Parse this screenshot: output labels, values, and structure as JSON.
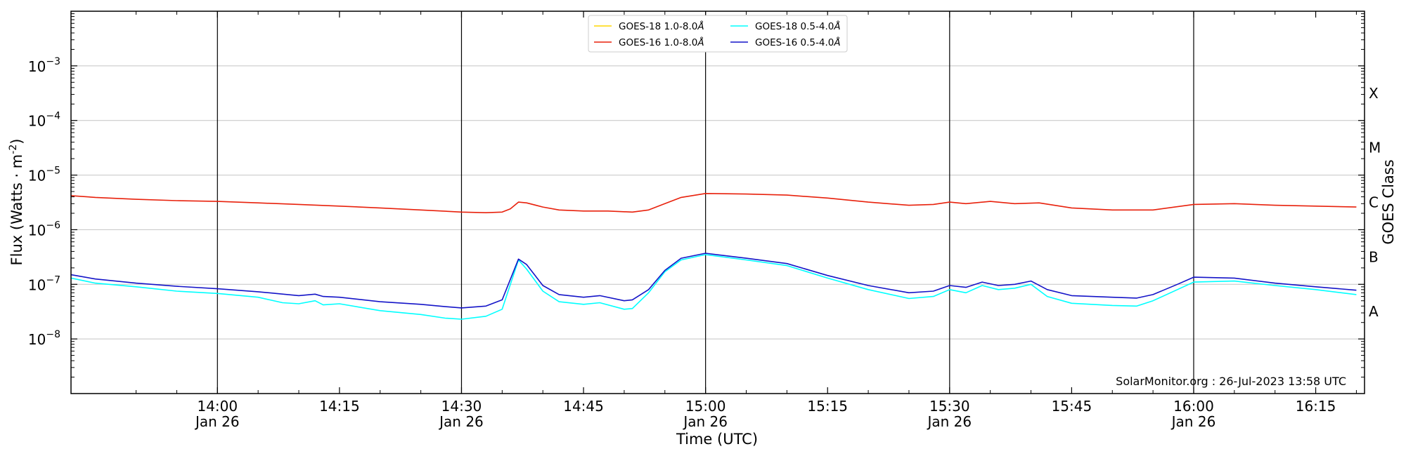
{
  "chart_data": {
    "type": "line",
    "xlabel": "Time (UTC)",
    "ylabel": "Flux (Watts · m",
    "ylabel_sup": "-2",
    "ylabel_close": ")",
    "y_scale": "log",
    "xlim": [
      "13:42",
      "16:21"
    ],
    "ylim": [
      1e-09,
      0.01
    ],
    "grid": "horizontal",
    "legend_position": "top-center",
    "x_ticks": [
      {
        "time": "14:00",
        "label": "14:00",
        "sub": "Jan 26"
      },
      {
        "time": "14:15",
        "label": "14:15",
        "sub": ""
      },
      {
        "time": "14:30",
        "label": "14:30",
        "sub": "Jan 26"
      },
      {
        "time": "14:45",
        "label": "14:45",
        "sub": ""
      },
      {
        "time": "15:00",
        "label": "15:00",
        "sub": "Jan 26"
      },
      {
        "time": "15:15",
        "label": "15:15",
        "sub": ""
      },
      {
        "time": "15:30",
        "label": "15:30",
        "sub": "Jan 26"
      },
      {
        "time": "15:45",
        "label": "15:45",
        "sub": ""
      },
      {
        "time": "16:00",
        "label": "16:00",
        "sub": "Jan 26"
      },
      {
        "time": "16:15",
        "label": "16:15",
        "sub": ""
      }
    ],
    "day_lines": [
      "14:00",
      "14:30",
      "15:00",
      "15:30",
      "16:00"
    ],
    "y_ticks": [
      {
        "value": 1e-08,
        "base": "10",
        "exp": "−8"
      },
      {
        "value": 1e-07,
        "base": "10",
        "exp": "−7"
      },
      {
        "value": 1e-06,
        "base": "10",
        "exp": "−6"
      },
      {
        "value": 1e-05,
        "base": "10",
        "exp": "−5"
      },
      {
        "value": 0.0001,
        "base": "10",
        "exp": "−4"
      },
      {
        "value": 0.001,
        "base": "10",
        "exp": "−3"
      }
    ],
    "right_axis": {
      "label": "GOES Class",
      "classes": [
        {
          "label": "A",
          "value": 3.16e-08
        },
        {
          "label": "B",
          "value": 3.16e-07
        },
        {
          "label": "C",
          "value": 3.16e-06
        },
        {
          "label": "M",
          "value": 3.16e-05
        },
        {
          "label": "X",
          "value": 0.000316
        }
      ]
    },
    "credit": "SolarMonitor.org : 26-Jul-2023 13:58 UTC",
    "legend": [
      {
        "label": "GOES-18 1.0-8.0",
        "unit": "Å",
        "color": "#FFD700"
      },
      {
        "label": "GOES-16 1.0-8.0",
        "unit": "Å",
        "color": "#E8210C"
      },
      {
        "label": "GOES-18 0.5-4.0",
        "unit": "Å",
        "color": "#00FFFF"
      },
      {
        "label": "GOES-16 0.5-4.0",
        "unit": "Å",
        "color": "#1414C8"
      }
    ],
    "series": [
      {
        "name": "GOES-16 1.0-8.0Å",
        "color": "#E8210C",
        "points": [
          [
            "13:42",
            4.2e-06
          ],
          [
            "13:45",
            3.9e-06
          ],
          [
            "13:50",
            3.6e-06
          ],
          [
            "13:55",
            3.4e-06
          ],
          [
            "14:00",
            3.3e-06
          ],
          [
            "14:05",
            3.1e-06
          ],
          [
            "14:10",
            2.9e-06
          ],
          [
            "14:15",
            2.7e-06
          ],
          [
            "14:20",
            2.5e-06
          ],
          [
            "14:25",
            2.3e-06
          ],
          [
            "14:30",
            2.1e-06
          ],
          [
            "14:33",
            2.05e-06
          ],
          [
            "14:35",
            2.1e-06
          ],
          [
            "14:36",
            2.4e-06
          ],
          [
            "14:37",
            3.2e-06
          ],
          [
            "14:38",
            3.1e-06
          ],
          [
            "14:40",
            2.6e-06
          ],
          [
            "14:42",
            2.3e-06
          ],
          [
            "14:45",
            2.2e-06
          ],
          [
            "14:48",
            2.2e-06
          ],
          [
            "14:51",
            2.1e-06
          ],
          [
            "14:53",
            2.3e-06
          ],
          [
            "14:55",
            3e-06
          ],
          [
            "14:57",
            3.9e-06
          ],
          [
            "15:00",
            4.6e-06
          ],
          [
            "15:05",
            4.5e-06
          ],
          [
            "15:10",
            4.3e-06
          ],
          [
            "15:15",
            3.8e-06
          ],
          [
            "15:20",
            3.2e-06
          ],
          [
            "15:25",
            2.8e-06
          ],
          [
            "15:28",
            2.9e-06
          ],
          [
            "15:30",
            3.2e-06
          ],
          [
            "15:32",
            3e-06
          ],
          [
            "15:35",
            3.3e-06
          ],
          [
            "15:38",
            3e-06
          ],
          [
            "15:41",
            3.1e-06
          ],
          [
            "15:45",
            2.5e-06
          ],
          [
            "15:50",
            2.3e-06
          ],
          [
            "15:55",
            2.3e-06
          ],
          [
            "16:00",
            2.9e-06
          ],
          [
            "16:05",
            3e-06
          ],
          [
            "16:10",
            2.8e-06
          ],
          [
            "16:15",
            2.7e-06
          ],
          [
            "16:20",
            2.6e-06
          ]
        ]
      },
      {
        "name": "GOES-18 0.5-4.0Å",
        "color": "#00FFFF",
        "points": [
          [
            "13:42",
            1.3e-07
          ],
          [
            "13:45",
            1.05e-07
          ],
          [
            "13:50",
            9e-08
          ],
          [
            "13:55",
            7.5e-08
          ],
          [
            "14:00",
            6.8e-08
          ],
          [
            "14:05",
            5.8e-08
          ],
          [
            "14:08",
            4.6e-08
          ],
          [
            "14:10",
            4.4e-08
          ],
          [
            "14:12",
            5e-08
          ],
          [
            "14:13",
            4.2e-08
          ],
          [
            "14:15",
            4.4e-08
          ],
          [
            "14:20",
            3.3e-08
          ],
          [
            "14:25",
            2.8e-08
          ],
          [
            "14:28",
            2.4e-08
          ],
          [
            "14:30",
            2.3e-08
          ],
          [
            "14:33",
            2.6e-08
          ],
          [
            "14:35",
            3.5e-08
          ],
          [
            "14:37",
            2.8e-07
          ],
          [
            "14:38",
            1.9e-07
          ],
          [
            "14:40",
            7.5e-08
          ],
          [
            "14:42",
            4.8e-08
          ],
          [
            "14:45",
            4.3e-08
          ],
          [
            "14:47",
            4.6e-08
          ],
          [
            "14:50",
            3.5e-08
          ],
          [
            "14:51",
            3.6e-08
          ],
          [
            "14:53",
            7e-08
          ],
          [
            "14:55",
            1.7e-07
          ],
          [
            "14:57",
            2.8e-07
          ],
          [
            "15:00",
            3.5e-07
          ],
          [
            "15:05",
            2.8e-07
          ],
          [
            "15:10",
            2.2e-07
          ],
          [
            "15:15",
            1.3e-07
          ],
          [
            "15:20",
            8e-08
          ],
          [
            "15:25",
            5.5e-08
          ],
          [
            "15:28",
            6e-08
          ],
          [
            "15:30",
            8e-08
          ],
          [
            "15:32",
            7e-08
          ],
          [
            "15:34",
            9.5e-08
          ],
          [
            "15:36",
            8e-08
          ],
          [
            "15:38",
            8.5e-08
          ],
          [
            "15:40",
            1e-07
          ],
          [
            "15:42",
            6e-08
          ],
          [
            "15:45",
            4.5e-08
          ],
          [
            "15:50",
            4.1e-08
          ],
          [
            "15:53",
            4e-08
          ],
          [
            "15:55",
            5e-08
          ],
          [
            "15:58",
            8e-08
          ],
          [
            "16:00",
            1.1e-07
          ],
          [
            "16:05",
            1.15e-07
          ],
          [
            "16:10",
            9.5e-08
          ],
          [
            "16:15",
            8e-08
          ],
          [
            "16:20",
            6.5e-08
          ]
        ]
      },
      {
        "name": "GOES-16 0.5-4.0Å",
        "color": "#1414C8",
        "points": [
          [
            "13:42",
            1.5e-07
          ],
          [
            "13:45",
            1.25e-07
          ],
          [
            "13:50",
            1.05e-07
          ],
          [
            "13:55",
            9.2e-08
          ],
          [
            "14:00",
            8.3e-08
          ],
          [
            "14:05",
            7.3e-08
          ],
          [
            "14:10",
            6.2e-08
          ],
          [
            "14:12",
            6.6e-08
          ],
          [
            "14:13",
            6e-08
          ],
          [
            "14:15",
            5.8e-08
          ],
          [
            "14:20",
            4.8e-08
          ],
          [
            "14:25",
            4.3e-08
          ],
          [
            "14:28",
            3.9e-08
          ],
          [
            "14:30",
            3.7e-08
          ],
          [
            "14:33",
            4e-08
          ],
          [
            "14:35",
            5.2e-08
          ],
          [
            "14:37",
            2.9e-07
          ],
          [
            "14:38",
            2.3e-07
          ],
          [
            "14:40",
            9.5e-08
          ],
          [
            "14:42",
            6.5e-08
          ],
          [
            "14:45",
            5.8e-08
          ],
          [
            "14:47",
            6.2e-08
          ],
          [
            "14:50",
            5e-08
          ],
          [
            "14:51",
            5.2e-08
          ],
          [
            "14:53",
            8e-08
          ],
          [
            "14:55",
            1.8e-07
          ],
          [
            "14:57",
            3e-07
          ],
          [
            "15:00",
            3.7e-07
          ],
          [
            "15:05",
            3e-07
          ],
          [
            "15:10",
            2.4e-07
          ],
          [
            "15:15",
            1.45e-07
          ],
          [
            "15:20",
            9.5e-08
          ],
          [
            "15:25",
            7e-08
          ],
          [
            "15:28",
            7.5e-08
          ],
          [
            "15:30",
            9.5e-08
          ],
          [
            "15:32",
            8.8e-08
          ],
          [
            "15:34",
            1.1e-07
          ],
          [
            "15:36",
            9.5e-08
          ],
          [
            "15:38",
            1e-07
          ],
          [
            "15:40",
            1.15e-07
          ],
          [
            "15:42",
            8e-08
          ],
          [
            "15:45",
            6.2e-08
          ],
          [
            "15:50",
            5.8e-08
          ],
          [
            "15:53",
            5.6e-08
          ],
          [
            "15:55",
            6.5e-08
          ],
          [
            "15:58",
            1e-07
          ],
          [
            "16:00",
            1.35e-07
          ],
          [
            "16:05",
            1.3e-07
          ],
          [
            "16:10",
            1.05e-07
          ],
          [
            "16:15",
            9e-08
          ],
          [
            "16:20",
            7.8e-08
          ]
        ]
      }
    ]
  }
}
